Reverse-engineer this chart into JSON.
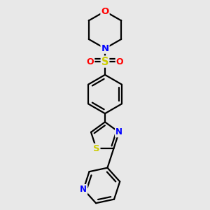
{
  "bg_color": "#e8e8e8",
  "bond_color": "#000000",
  "bond_width": 1.6,
  "atom_colors": {
    "O": "#ff0000",
    "N": "#0000ff",
    "S": "#cccc00",
    "C": "#000000"
  },
  "font_size": 8.5,
  "fig_size": [
    3.0,
    3.0
  ],
  "dpi": 100
}
